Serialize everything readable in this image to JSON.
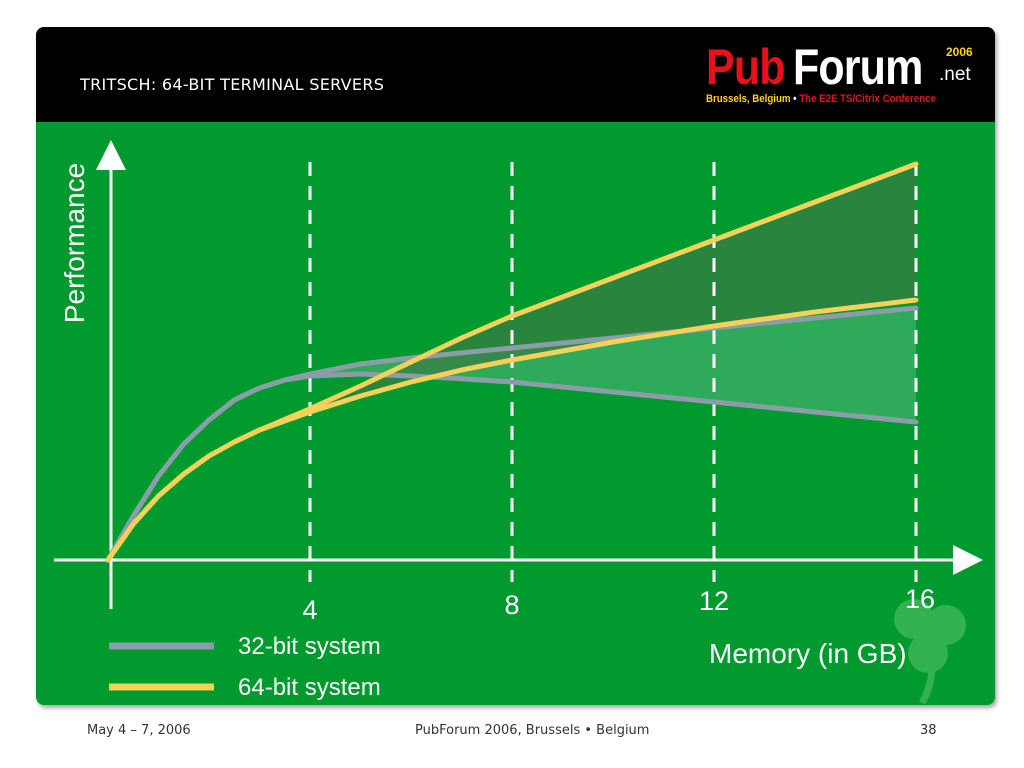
{
  "slide": {
    "title": "TRITSCH: 64-BIT TERMINAL SERVERS"
  },
  "logo": {
    "pub": "Pub",
    "forum": "Forum",
    "year": "2006",
    "net": ".net",
    "city": "Brussels, Belgium",
    "separator": " • ",
    "conference": "The E2E TS/Citrix Conference"
  },
  "footer": {
    "date": "May 4 – 7, 2006",
    "event": "PubForum 2006,  Brussels • Belgium",
    "page": "38"
  },
  "colors": {
    "background": "#009a2f",
    "header": "#000000",
    "series_32bit": "#8a9da8",
    "series_64bit": "#f5d15a",
    "fill_band": "#4a7a50",
    "axis": "#ffffff"
  },
  "chart_data": {
    "type": "line",
    "xlabel": "Memory (in GB)",
    "ylabel": "Performance",
    "x_ticks": [
      4,
      8,
      12,
      16
    ],
    "xlim": [
      0,
      17
    ],
    "ylim": [
      0,
      100
    ],
    "grid": "vertical dashed at ticks",
    "legend_position": "bottom-left",
    "series": [
      {
        "name": "32-bit system",
        "color": "#8a9da8",
        "curves": [
          {
            "x": [
              0,
              0.5,
              1,
              1.5,
              2,
              2.5,
              3,
              3.5,
              4,
              5,
              6,
              7,
              8,
              10,
              12,
              14,
              16
            ],
            "y": [
              0,
              11,
              21,
              29,
              35,
              40,
              43,
              45,
              46,
              46.5,
              46,
              45.3,
              44.5,
              42,
              39.5,
              37,
              34.5
            ]
          },
          {
            "x": [
              0,
              0.5,
              1,
              1.5,
              2,
              2.5,
              3,
              3.5,
              4,
              5,
              6,
              7,
              8,
              10,
              12,
              14,
              16
            ],
            "y": [
              0,
              11,
              21,
              29,
              35,
              40,
              43,
              45,
              46.5,
              49,
              50.5,
              51.8,
              53,
              55.5,
              58,
              60.5,
              63
            ]
          }
        ]
      },
      {
        "name": "64-bit system",
        "color": "#f5d15a",
        "curves": [
          {
            "x": [
              0,
              0.5,
              1,
              1.5,
              2,
              2.5,
              3,
              4,
              5,
              6,
              7,
              8,
              10,
              12,
              14,
              16
            ],
            "y": [
              0,
              9,
              16,
              21.5,
              26,
              29.5,
              32.5,
              37,
              41,
              44.5,
              47.5,
              50,
              54.5,
              58.5,
              62,
              65
            ]
          },
          {
            "x": [
              0,
              0.5,
              1,
              1.5,
              2,
              2.5,
              3,
              4,
              5,
              6,
              7,
              8,
              10,
              12,
              14,
              16
            ],
            "y": [
              0,
              9,
              16,
              21.5,
              26,
              29.5,
              32.5,
              37.8,
              43.5,
              49.5,
              55.5,
              61,
              70.5,
              80,
              89.5,
              99
            ]
          }
        ]
      }
    ]
  }
}
